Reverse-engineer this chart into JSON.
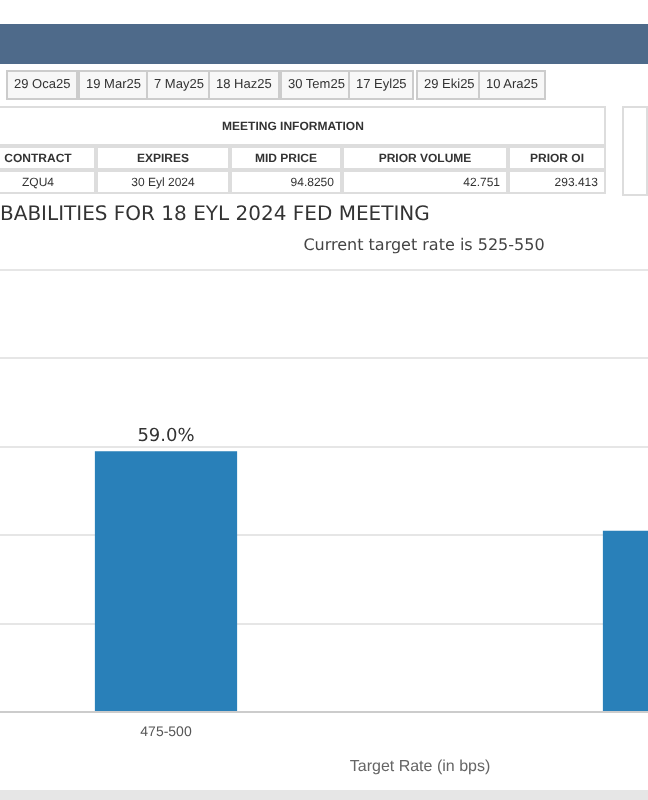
{
  "chart_data": [
    {
      "type": "other",
      "annotations": [
        "29 Oca25",
        "19 Mar25",
        "7 May25",
        "18 Haz25",
        "30 Tem25",
        "17 Eyl25",
        "29 Eki25",
        "10 Ara25",
        "MEETING INFORMATION",
        "CONTRACT",
        "EXPIRES",
        "MID PRICE",
        "PRIOR VOLUME",
        "PRIOR OI",
        "ZQU4",
        "30 Eyl 2024",
        "94.8250",
        "42.751",
        "293.413"
      ]
    },
    {
      "type": "bar",
      "title": "BABILITIES FOR 18 EYL 2024 FED MEETING",
      "subtitle": "Current target rate is 525-550",
      "xlabel": "Target Rate (in bps)",
      "categories": [
        "475-500",
        null
      ],
      "values": [
        59.0,
        41
      ],
      "color": "#2980b9",
      "value_labels": [
        "59.0%",
        null
      ],
      "ylim": [
        0,
        100
      ],
      "yticks": [
        {
          "value": 0,
          "label": null
        },
        {
          "value": 20,
          "label": null
        },
        {
          "value": 40,
          "label": null
        },
        {
          "value": 60,
          "label": null
        },
        {
          "value": 80,
          "label": null
        },
        {
          "value": 100,
          "label": null
        }
      ],
      "grid": "y",
      "tick_labels": "x",
      "legend": false
    }
  ]
}
